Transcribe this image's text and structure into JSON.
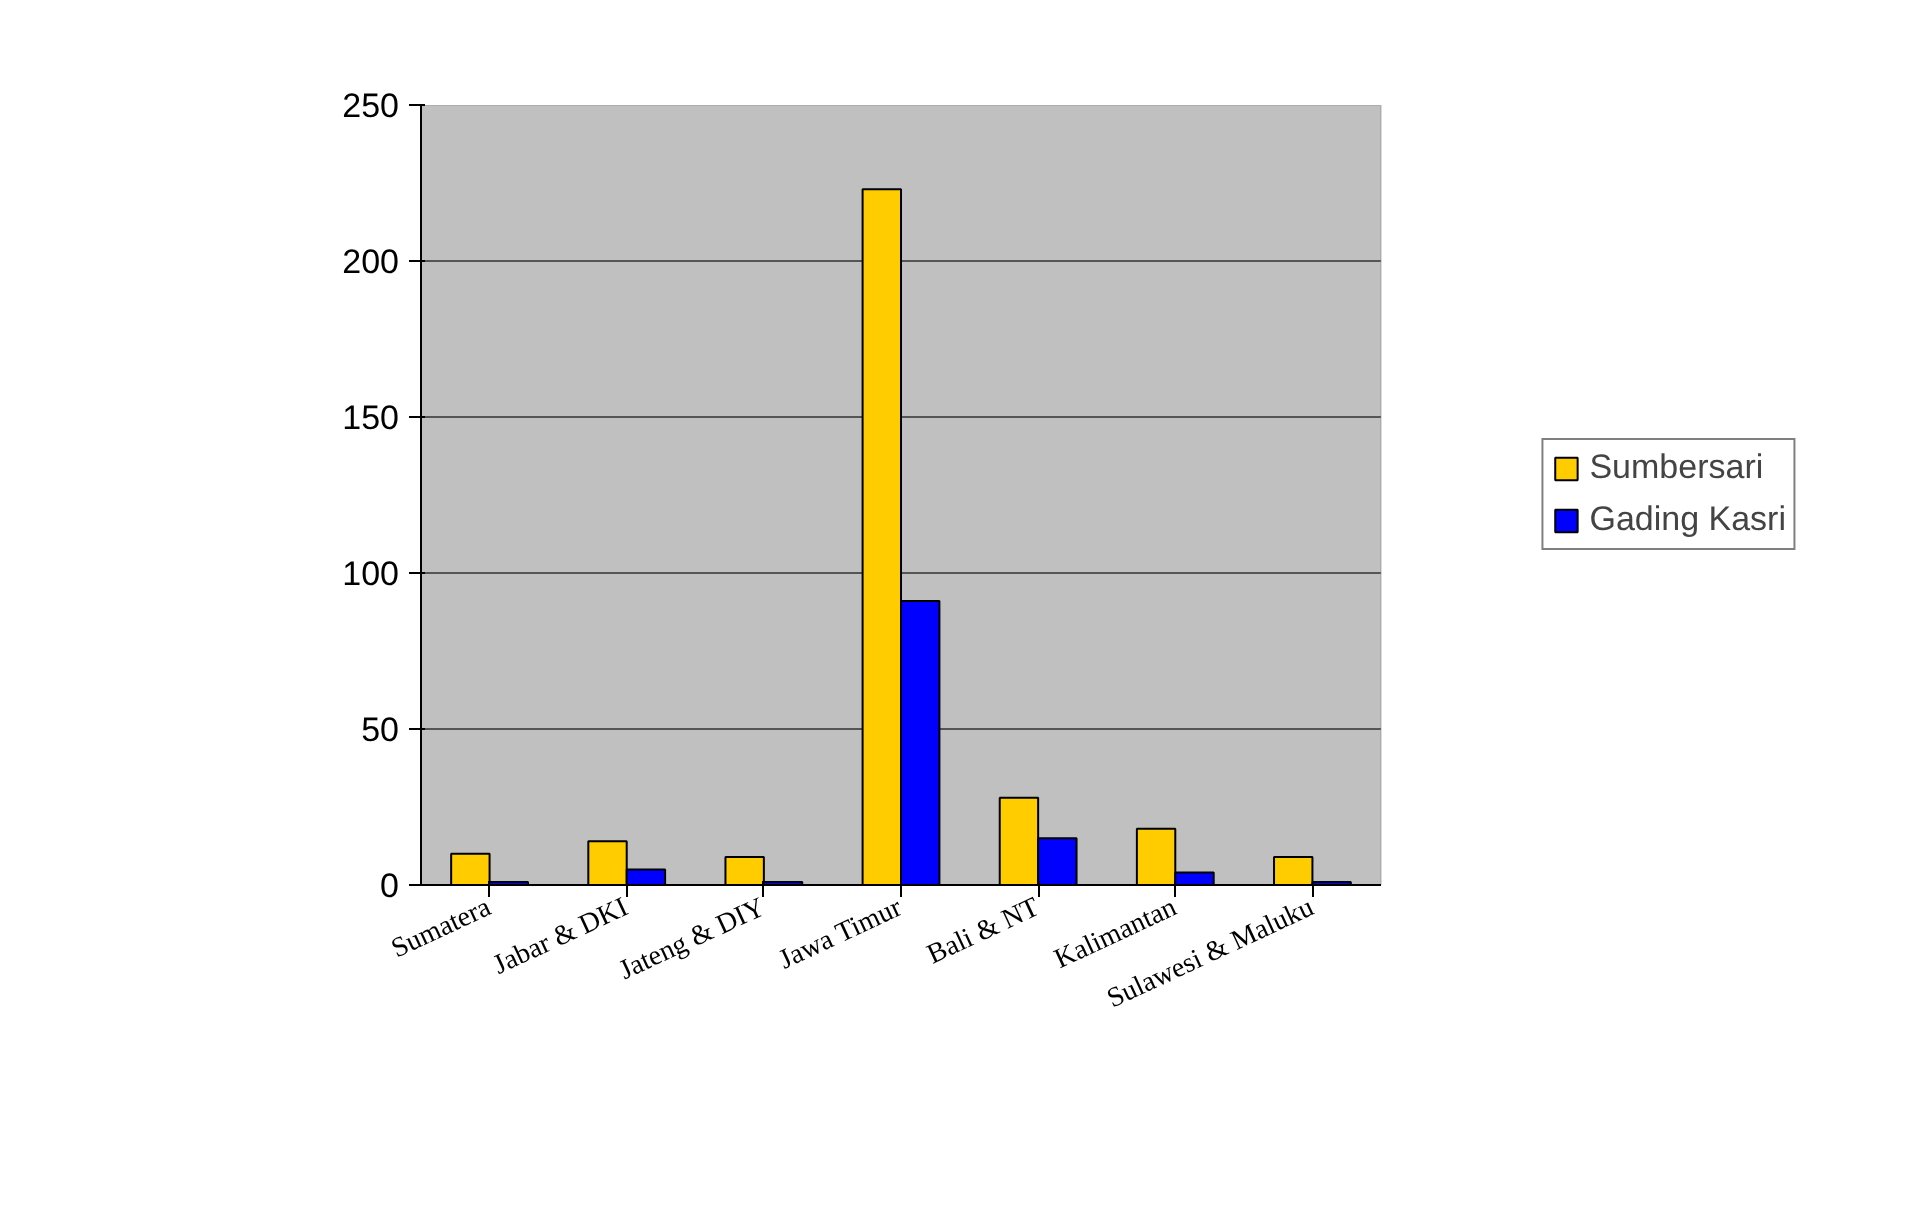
{
  "chart_data": {
    "type": "bar",
    "categories": [
      "Sumatera",
      "Jabar & DKI",
      "Jateng & DIY",
      "Jawa Timur",
      "Bali & NT",
      "Kalimantan",
      "Sulawesi & Maluku"
    ],
    "series": [
      {
        "name": "Sumbersari",
        "color": "#ffcc00",
        "values": [
          10,
          14,
          9,
          223,
          28,
          18,
          9
        ]
      },
      {
        "name": "Gading Kasri",
        "color": "#0000ff",
        "values": [
          1,
          5,
          1,
          91,
          15,
          4,
          1
        ]
      }
    ],
    "ylim": [
      0,
      250
    ],
    "yticks": [
      0,
      50,
      100,
      150,
      200,
      250
    ],
    "grid": "y",
    "legend": "right"
  }
}
